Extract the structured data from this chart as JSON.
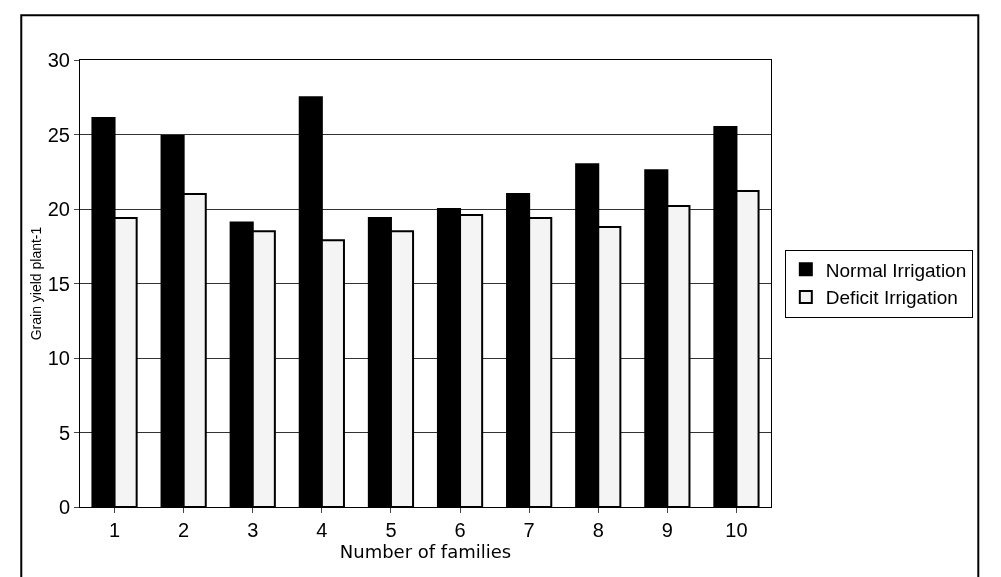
{
  "chart_data": {
    "type": "bar",
    "xlabel": "Number of families",
    "ylabel": "Grain yield plant-1",
    "categories": [
      "1",
      "2",
      "3",
      "4",
      "5",
      "6",
      "7",
      "8",
      "9",
      "10"
    ],
    "series": [
      {
        "name": "Normal Irrigation",
        "color": "#000000",
        "values": [
          26.1,
          24.9,
          19.1,
          27.5,
          19.4,
          20.0,
          21.0,
          23.0,
          22.6,
          25.5
        ]
      },
      {
        "name": "Deficit Irrigation",
        "color": "#f4f4f4",
        "values": [
          19.4,
          21.0,
          18.5,
          17.9,
          18.5,
          19.6,
          19.4,
          18.8,
          20.2,
          21.2
        ]
      }
    ],
    "ylim": [
      0,
      30
    ],
    "yticks": [
      0,
      5,
      10,
      15,
      20,
      25,
      30
    ],
    "grid": "y",
    "legend": "right"
  }
}
